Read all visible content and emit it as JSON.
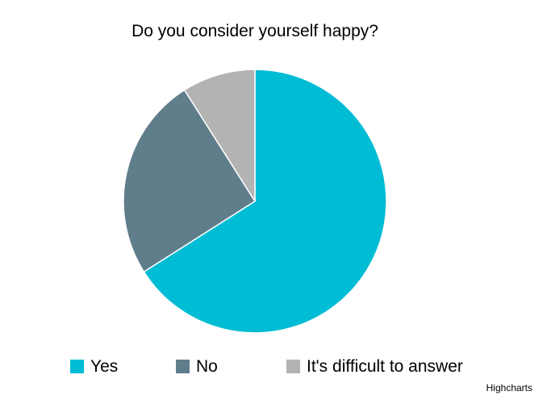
{
  "chart_data": {
    "type": "pie",
    "title": "Do you consider yourself happy?",
    "slices": [
      {
        "label": "Yes",
        "value": 66,
        "color": "#00BCD4"
      },
      {
        "label": "No",
        "value": 25,
        "color": "#607D8B"
      },
      {
        "label": "It's difficult to answer",
        "value": 9,
        "color": "#B3B3B3"
      }
    ],
    "legend_position": "bottom"
  },
  "credits": "Highcharts"
}
